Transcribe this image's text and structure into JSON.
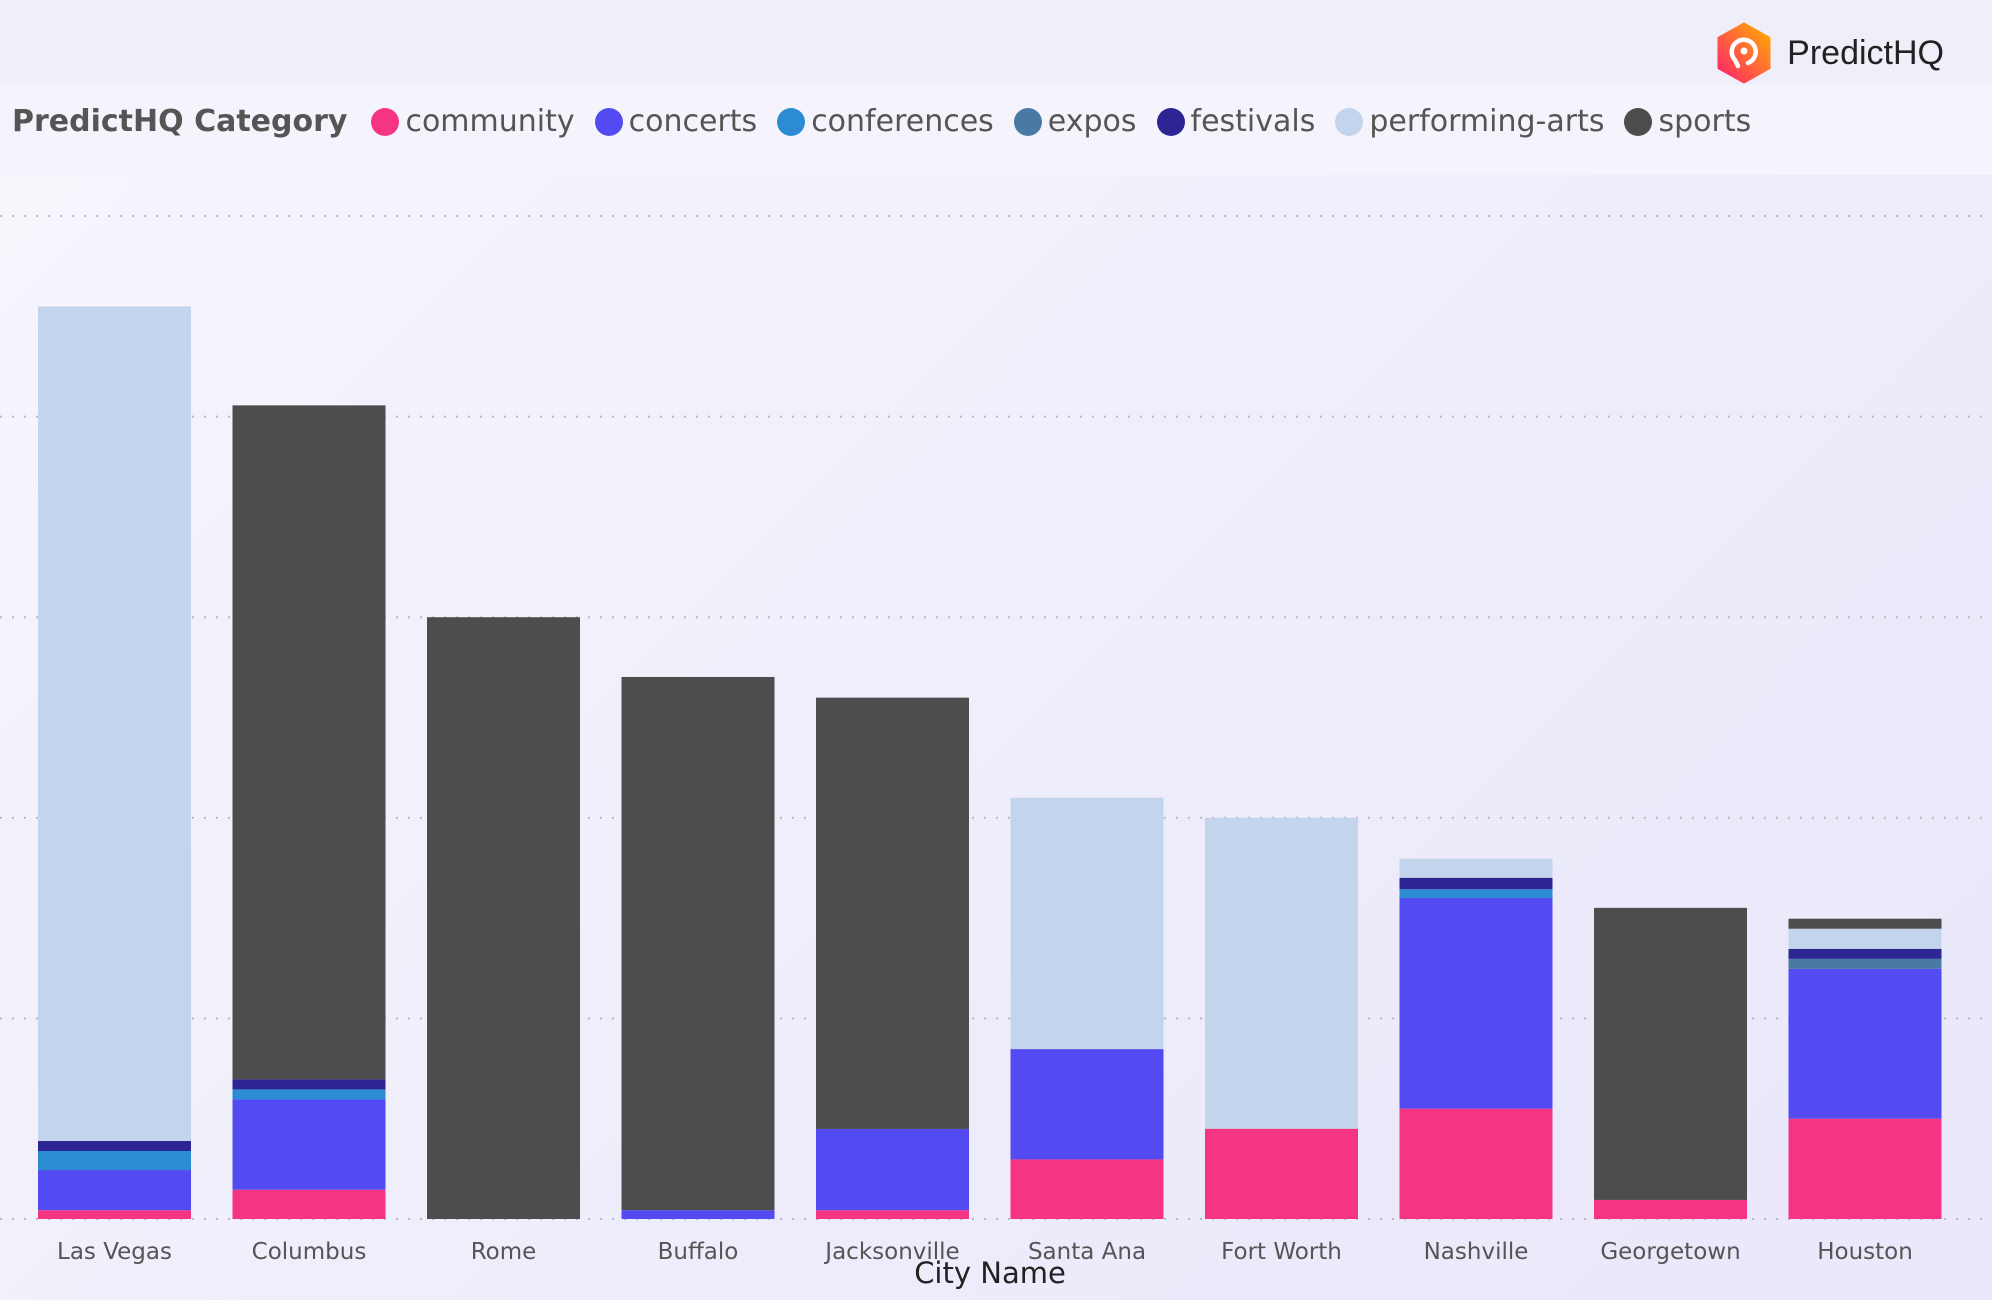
{
  "brand": {
    "name": "PredictHQ"
  },
  "chart_data": {
    "type": "bar",
    "stacked": true,
    "title": "",
    "xlabel": "City Name",
    "ylabel": "",
    "ylim": [
      0,
      500
    ],
    "grid": true,
    "legend_title": "PredictHQ Category",
    "legend_position": "top-left",
    "categories": [
      "Las Vegas",
      "Columbus",
      "Rome",
      "Buffalo",
      "Jacksonville",
      "Santa Ana",
      "Fort Worth",
      "Nashville",
      "Georgetown",
      "Houston"
    ],
    "series": [
      {
        "name": "community",
        "color": "#f53584",
        "values": [
          4.4,
          14.6,
          0,
          0,
          4.4,
          29.7,
          45,
          55,
          9.5,
          50
        ]
      },
      {
        "name": "concerts",
        "color": "#534bf1",
        "values": [
          20,
          45,
          0,
          4.4,
          40.5,
          55,
          0,
          105,
          0,
          74.7
        ]
      },
      {
        "name": "conferences",
        "color": "#2b8bd3",
        "values": [
          9.5,
          5,
          0,
          0,
          0,
          0,
          0,
          4.4,
          0,
          0
        ]
      },
      {
        "name": "expos",
        "color": "#4a79a5",
        "values": [
          0,
          0,
          0,
          0,
          0,
          0,
          0,
          0,
          0,
          5
        ]
      },
      {
        "name": "festivals",
        "color": "#2e2594",
        "values": [
          5,
          5,
          0,
          0,
          0,
          0,
          0,
          5.7,
          0,
          5
        ]
      },
      {
        "name": "performing-arts",
        "color": "#c3d5ec",
        "values": [
          416,
          0,
          0,
          0,
          0,
          125.3,
          155,
          9.5,
          0,
          10
        ]
      },
      {
        "name": "sports",
        "color": "#4d4d4d",
        "values": [
          0,
          336,
          300,
          265.8,
          215,
          0,
          0,
          0,
          145.6,
          5
        ]
      }
    ]
  }
}
